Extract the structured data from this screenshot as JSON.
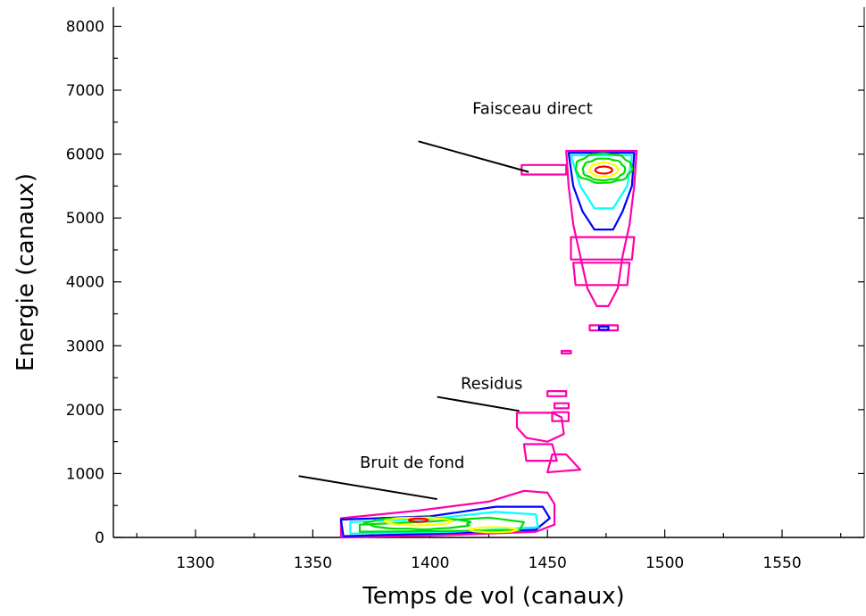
{
  "chart_data": {
    "type": "contour",
    "xlabel": "Temps de vol (canaux)",
    "ylabel": "Energie (canaux)",
    "xlim": [
      1265,
      1585
    ],
    "ylim": [
      0,
      8300
    ],
    "x_ticks": [
      1300,
      1350,
      1400,
      1450,
      1500,
      1550
    ],
    "y_ticks": [
      0,
      1000,
      2000,
      3000,
      4000,
      5000,
      6000,
      7000,
      8000
    ],
    "grid": false,
    "contour_colors": [
      "#ff00aa",
      "#0000ff",
      "#00ffff",
      "#00dd00",
      "#ffff00",
      "#ff0000"
    ],
    "annotations": [
      {
        "text": "Faisceau direct",
        "label_at": [
          1418,
          6630
        ],
        "arrow_from": [
          1395,
          6200
        ],
        "arrow_to": [
          1442,
          5720
        ]
      },
      {
        "text": "Residus",
        "label_at": [
          1413,
          2330
        ],
        "arrow_from": [
          1403,
          2200
        ],
        "arrow_to": [
          1438,
          1980
        ]
      },
      {
        "text": "Bruit de fond",
        "label_at": [
          1370,
          1090
        ],
        "arrow_from": [
          1344,
          960
        ],
        "arrow_to": [
          1403,
          600
        ]
      }
    ],
    "regions": [
      {
        "name": "Faisceau direct",
        "x_range": [
          1458,
          1488
        ],
        "y_range": [
          3500,
          6050
        ],
        "peak": [
          1474,
          5750
        ]
      },
      {
        "name": "Residus",
        "x_range": [
          1436,
          1460
        ],
        "y_range": [
          1000,
          2300
        ]
      },
      {
        "name": "Bruit de fond",
        "x_range": [
          1362,
          1453
        ],
        "y_range": [
          0,
          750
        ],
        "peak": [
          1395,
          270
        ]
      }
    ]
  }
}
